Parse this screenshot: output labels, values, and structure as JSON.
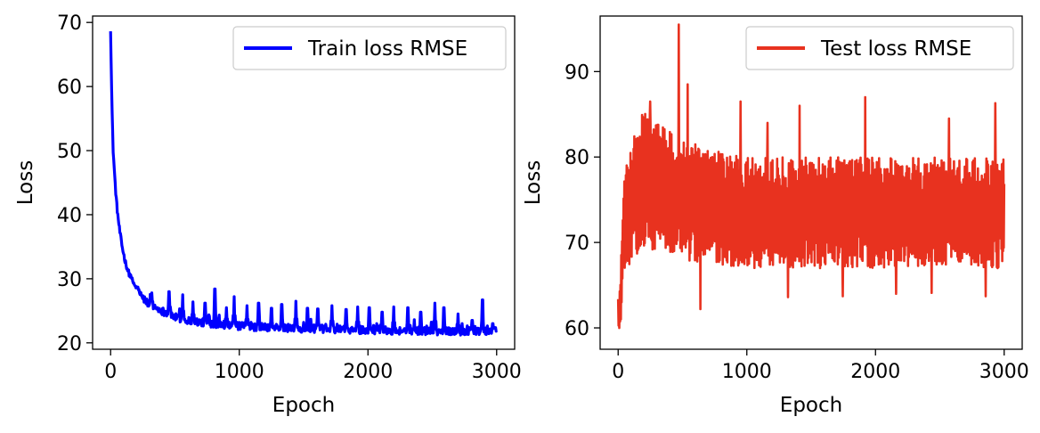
{
  "chart_data": [
    {
      "type": "line",
      "xlabel": "Epoch",
      "ylabel": "Loss",
      "xlim": [
        -140,
        3140
      ],
      "ylim": [
        19,
        71
      ],
      "xticks": [
        0,
        1000,
        2000,
        3000
      ],
      "yticks": [
        20,
        30,
        40,
        50,
        60,
        70
      ],
      "legend_position": "top-right",
      "grid": false,
      "series": [
        {
          "name": "Train loss RMSE",
          "color": "#0000ff",
          "x": [
            0,
            10,
            20,
            30,
            40,
            50,
            70,
            90,
            110,
            130,
            150,
            175,
            200,
            250,
            300,
            350,
            400,
            450,
            500,
            600,
            700,
            800,
            900,
            1000,
            1200,
            1400,
            1600,
            1800,
            2000,
            2200,
            2400,
            2600,
            2800,
            3000
          ],
          "values": [
            69,
            57,
            50,
            46.5,
            43.5,
            41,
            37.5,
            35,
            33,
            31.5,
            30.5,
            29.5,
            28.5,
            27,
            26,
            25.5,
            25,
            24.5,
            24,
            23.5,
            23.2,
            23,
            22.8,
            22.6,
            22.4,
            22.3,
            22.2,
            22.1,
            22,
            21.9,
            21.9,
            21.8,
            21.8,
            21.8
          ],
          "spikes": [
            [
              210,
              28.7
            ],
            [
              320,
              27.8
            ],
            [
              455,
              28
            ],
            [
              560,
              27.5
            ],
            [
              640,
              26.4
            ],
            [
              735,
              26.2
            ],
            [
              810,
              28.4
            ],
            [
              900,
              25.5
            ],
            [
              960,
              27.2
            ],
            [
              1060,
              25.8
            ],
            [
              1150,
              26.2
            ],
            [
              1250,
              25.4
            ],
            [
              1330,
              26
            ],
            [
              1440,
              26.5
            ],
            [
              1530,
              25.4
            ],
            [
              1610,
              25.3
            ],
            [
              1720,
              25.8
            ],
            [
              1830,
              25.2
            ],
            [
              1920,
              25.6
            ],
            [
              2010,
              25.5
            ],
            [
              2110,
              24.8
            ],
            [
              2200,
              25.6
            ],
            [
              2310,
              25.5
            ],
            [
              2410,
              24.8
            ],
            [
              2520,
              26.2
            ],
            [
              2590,
              25.5
            ],
            [
              2700,
              24.5
            ],
            [
              2810,
              23.5
            ],
            [
              2890,
              26.7
            ],
            [
              2970,
              23
            ]
          ]
        }
      ]
    },
    {
      "type": "line",
      "xlabel": "Epoch",
      "ylabel": "Loss",
      "xlim": [
        -140,
        3140
      ],
      "ylim": [
        57.5,
        96.5
      ],
      "xticks": [
        0,
        1000,
        2000,
        3000
      ],
      "yticks": [
        60,
        70,
        80,
        90
      ],
      "legend_position": "top-right",
      "grid": false,
      "series": [
        {
          "name": "Test loss RMSE",
          "color": "#e8321f",
          "x": [
            0,
            10,
            20,
            30,
            40,
            60,
            80,
            100,
            150,
            200,
            250,
            300,
            400,
            500,
            700,
            1000,
            1500,
            2000,
            2500,
            3000
          ],
          "upper": [
            64,
            64,
            66,
            74,
            76,
            79,
            80,
            81,
            84,
            86,
            85,
            84,
            83,
            82,
            81,
            80,
            80,
            80,
            80,
            80
          ],
          "lower": [
            60,
            59.3,
            59.6,
            62,
            64.5,
            66,
            67,
            68,
            68.5,
            69,
            69,
            69,
            68.5,
            68,
            67.5,
            67,
            67,
            67,
            67,
            67
          ],
          "spikes_high": [
            [
              470,
              95.5
            ],
            [
              540,
              88.5
            ],
            [
              950,
              86.5
            ],
            [
              1410,
              86
            ],
            [
              1920,
              87
            ],
            [
              2930,
              86.3
            ],
            [
              250,
              86.5
            ],
            [
              1160,
              84
            ],
            [
              2570,
              84.5
            ]
          ],
          "spikes_low": [
            [
              640,
              62.2
            ],
            [
              1320,
              63.6
            ],
            [
              1745,
              63.7
            ],
            [
              2160,
              64
            ],
            [
              2855,
              63.7
            ],
            [
              2435,
              64.1
            ]
          ]
        }
      ]
    }
  ]
}
